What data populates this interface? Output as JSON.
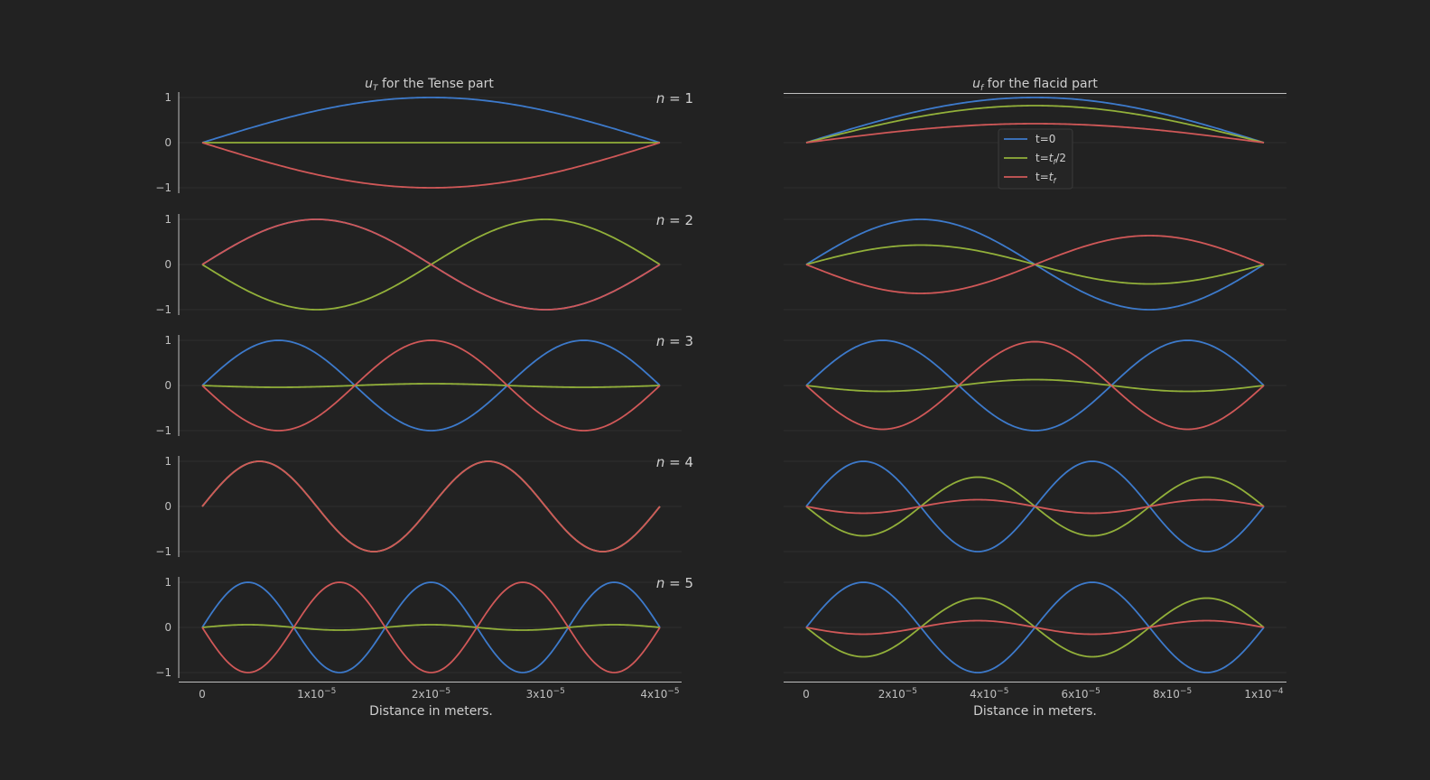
{
  "chart_data": [
    {
      "type": "line",
      "title_html": "<tspan font-style='italic'>u</tspan><tspan font-style='italic' font-size='9' dy='3'>T</tspan><tspan dy='-3'> for the Tense part</tspan>",
      "xlabel": "Distance in meters.",
      "x_range": [
        0,
        4e-05
      ],
      "ylim": [
        -1,
        1
      ],
      "yticks": [
        "1",
        "0",
        "−1"
      ],
      "xticks": [
        {
          "value": 0,
          "label": "0"
        },
        {
          "value": 1e-05,
          "label": "1x10",
          "exp": "−5"
        },
        {
          "value": 2e-05,
          "label": "2x10",
          "exp": "−5"
        },
        {
          "value": 3e-05,
          "label": "3x10",
          "exp": "−5"
        },
        {
          "value": 4e-05,
          "label": "4x10",
          "exp": "−5"
        }
      ],
      "panels": [
        {
          "n": 1,
          "label": "n = 1",
          "mode": 1,
          "amplitudes": {
            "t=0": 1,
            "t=t_f/2": 0,
            "t=t_f": -1
          }
        },
        {
          "n": 2,
          "label": "n = 2",
          "mode": 2,
          "amplitudes": {
            "t=0": 1,
            "t=t_f/2": -1,
            "t=t_f": 1
          }
        },
        {
          "n": 3,
          "label": "n = 3",
          "mode": 3,
          "amplitudes": {
            "t=0": 1,
            "t=t_f/2": -0.04,
            "t=t_f": -1
          }
        },
        {
          "n": 4,
          "label": "n = 4",
          "mode": 4,
          "amplitudes": {
            "t=0": 1,
            "t=t_f/2": 1,
            "t=t_f": 1
          }
        },
        {
          "n": 5,
          "label": "n = 5",
          "mode": 5,
          "amplitudes": {
            "t=0": 1,
            "t=t_f/2": 0.06,
            "t=t_f": -1
          }
        }
      ]
    },
    {
      "type": "line",
      "title_html": "<tspan font-style='italic'>u</tspan><tspan font-style='italic' font-size='9' dy='3'>f</tspan><tspan dy='-3'> for the flacid part</tspan>",
      "xlabel": "Distance in meters.",
      "x_range": [
        0,
        0.0001
      ],
      "ylim": [
        -1,
        1
      ],
      "xticks": [
        {
          "value": 0,
          "label": "0"
        },
        {
          "value": 2e-05,
          "label": "2x10",
          "exp": "−5"
        },
        {
          "value": 4e-05,
          "label": "4x10",
          "exp": "−5"
        },
        {
          "value": 6e-05,
          "label": "6x10",
          "exp": "−5"
        },
        {
          "value": 8e-05,
          "label": "8x10",
          "exp": "−5"
        },
        {
          "value": 0.0001,
          "label": "1x10",
          "exp": "−4"
        }
      ],
      "panels": [
        {
          "n": 1,
          "mode": 1,
          "amplitudes": {
            "t=0": 1,
            "t=t_f/2": 0.82,
            "t=t_f": 0.42
          }
        },
        {
          "n": 2,
          "mode": 2,
          "amplitudes": {
            "t=0": 1,
            "t=t_f/2": 0.43,
            "t=t_f": -0.64
          }
        },
        {
          "n": 3,
          "mode": 3,
          "amplitudes": {
            "t=0": 1,
            "t=t_f/2": -0.13,
            "t=t_f": -0.97
          }
        },
        {
          "n": 4,
          "mode": 4,
          "amplitudes": {
            "t=0": 1,
            "t=t_f/2": -0.65,
            "t=t_f": -0.15
          }
        },
        {
          "n": 5,
          "mode": 4,
          "amplitudes": {
            "t=0": 1,
            "t=t_f/2": -0.65,
            "t=t_f": -0.15
          }
        }
      ]
    }
  ],
  "series": [
    {
      "key": "t=0",
      "color": "#3d7acb"
    },
    {
      "key": "t=t_f/2",
      "color": "#92b03a"
    },
    {
      "key": "t=t_f",
      "color": "#d05858"
    }
  ],
  "legend": {
    "placement": "upper-center of right n=1 panel",
    "entries": [
      {
        "html": "t=0"
      },
      {
        "html": "t=<tspan font-style='italic'>t</tspan><tspan font-style='italic' font-size='8' dy='3'>f</tspan><tspan dy='-3'>/2</tspan>"
      },
      {
        "html": "t=<tspan font-style='italic'>t</tspan><tspan font-style='italic' font-size='8' dy='3'>f</tspan>"
      }
    ]
  },
  "colors": {
    "background": "#222222",
    "axis": "#bfbfbf",
    "grid": "#2f2f2f"
  }
}
